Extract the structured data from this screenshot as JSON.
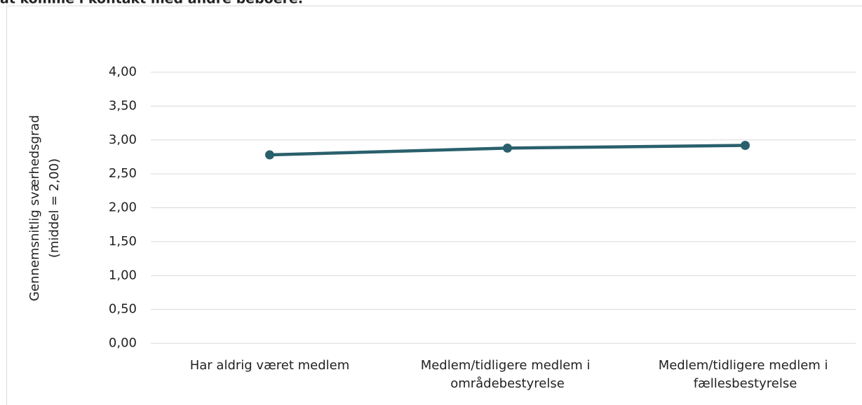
{
  "chart_data": {
    "type": "line",
    "title": "at komme i kontakt med andre beboere.",
    "y_label": [
      "Gennemsnitlig sværhedsgrad",
      "(middel = 2,00)"
    ],
    "categories": [
      "Har aldrig været medlem",
      "Medlem/tidligere medlem i områdebestyrelse",
      "Medlem/tidligere medlem i fællesbestyrelse"
    ],
    "values": [
      2.78,
      2.88,
      2.92
    ],
    "color": "#29606c",
    "ylim": [
      0,
      4
    ],
    "yticks": [
      {
        "value": 0,
        "label": "0,00"
      },
      {
        "value": 0.5,
        "label": "0,50"
      },
      {
        "value": 1,
        "label": "1,00"
      },
      {
        "value": 1.5,
        "label": "1,50"
      },
      {
        "value": 2,
        "label": "2,00"
      },
      {
        "value": 2.5,
        "label": "2,50"
      },
      {
        "value": 3,
        "label": "3,00"
      },
      {
        "value": 3.5,
        "label": "3,50"
      },
      {
        "value": 4,
        "label": "4,00"
      }
    ],
    "grid": true
  }
}
